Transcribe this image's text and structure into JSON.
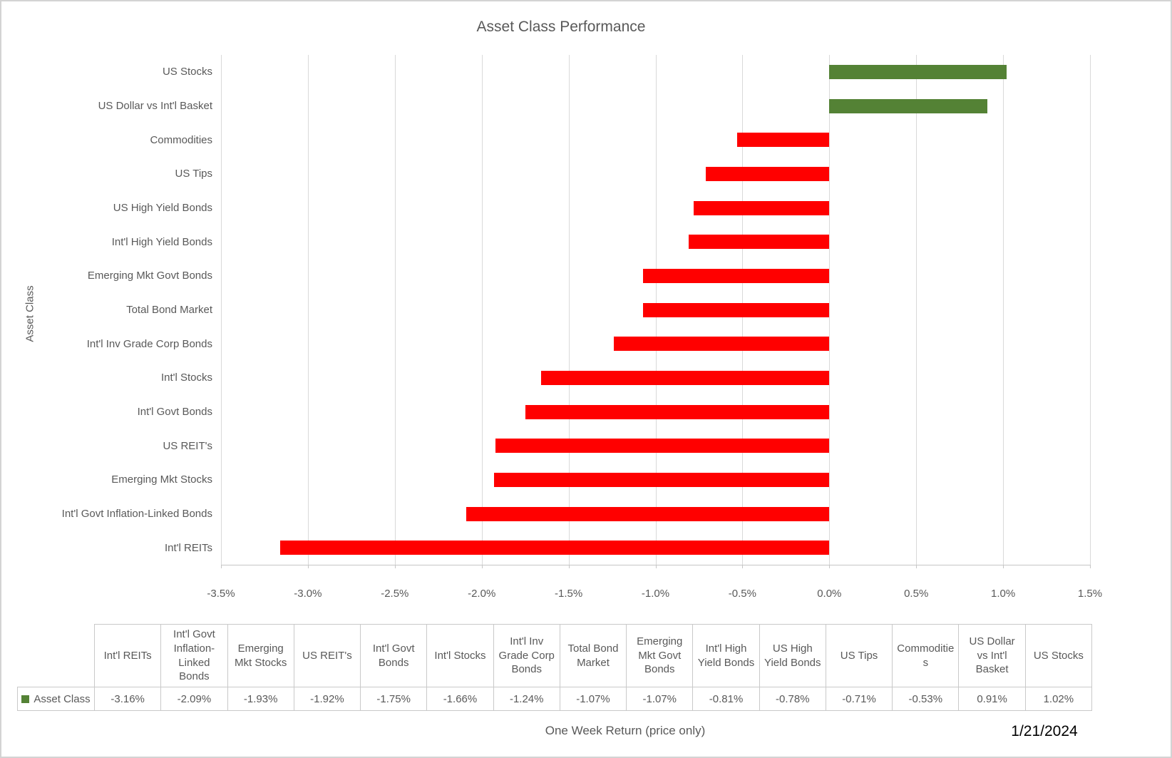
{
  "title": "Asset Class Performance",
  "y_axis_label": "Asset Class",
  "x_axis_label": "One Week Return (price only)",
  "date_label": "1/21/2024",
  "colors": {
    "positive_bar": "#548235",
    "negative_bar": "#ff0000",
    "gridline": "#d9d9d9",
    "text": "#595959",
    "axis_line": "#c6c6c6",
    "table_border": "#c9c9c9",
    "canvas_border": "#d3d3d3"
  },
  "chart_data": {
    "type": "bar",
    "orientation": "horizontal",
    "title": "Asset Class Performance",
    "xlabel": "One Week Return (price only)",
    "ylabel": "Asset Class",
    "xlim": [
      -3.5,
      1.5
    ],
    "x_tick_labels": [
      "-3.5%",
      "-3.0%",
      "-2.5%",
      "-2.0%",
      "-1.5%",
      "-1.0%",
      "-0.5%",
      "0.0%",
      "0.5%",
      "1.0%",
      "1.5%"
    ],
    "grid": true,
    "legend_label": "Asset Class",
    "legend_position": "bottom-table",
    "categories": [
      "US Stocks",
      "US Dollar vs Int'l Basket",
      "Commodities",
      "US Tips",
      "US High Yield Bonds",
      "Int'l High Yield Bonds",
      "Emerging Mkt Govt Bonds",
      "Total Bond Market",
      "Int'l Inv Grade Corp Bonds",
      "Int'l Stocks",
      "Int'l Govt Bonds",
      "US REIT's",
      "Emerging Mkt Stocks",
      "Int'l Govt Inflation-Linked Bonds",
      "Int'l REITs"
    ],
    "values_percent": [
      1.02,
      0.91,
      -0.53,
      -0.71,
      -0.78,
      -0.81,
      -1.07,
      -1.07,
      -1.24,
      -1.66,
      -1.75,
      -1.92,
      -1.93,
      -2.09,
      -3.16
    ]
  },
  "table": {
    "legend": {
      "label": "Asset Class",
      "marker_color": "#548235"
    },
    "columns": [
      {
        "label": "Int'l REITs",
        "value": "-3.16%"
      },
      {
        "label": "Int'l Govt Inflation-Linked Bonds",
        "value": "-2.09%"
      },
      {
        "label": "Emerging Mkt Stocks",
        "value": "-1.93%"
      },
      {
        "label": "US REIT's",
        "value": "-1.92%"
      },
      {
        "label": "Int'l Govt Bonds",
        "value": "-1.75%"
      },
      {
        "label": "Int'l Stocks",
        "value": "-1.66%"
      },
      {
        "label": "Int'l Inv Grade Corp Bonds",
        "value": "-1.24%"
      },
      {
        "label": "Total Bond Market",
        "value": "-1.07%"
      },
      {
        "label": "Emerging Mkt Govt Bonds",
        "value": "-1.07%"
      },
      {
        "label": "Int'l High Yield Bonds",
        "value": "-0.81%"
      },
      {
        "label": "US High Yield Bonds",
        "value": "-0.78%"
      },
      {
        "label": "US Tips",
        "value": "-0.71%"
      },
      {
        "label": "Commodities",
        "value": "-0.53%"
      },
      {
        "label": "US Dollar vs Int'l Basket",
        "value": "0.91%"
      },
      {
        "label": "US Stocks",
        "value": "1.02%"
      }
    ]
  }
}
